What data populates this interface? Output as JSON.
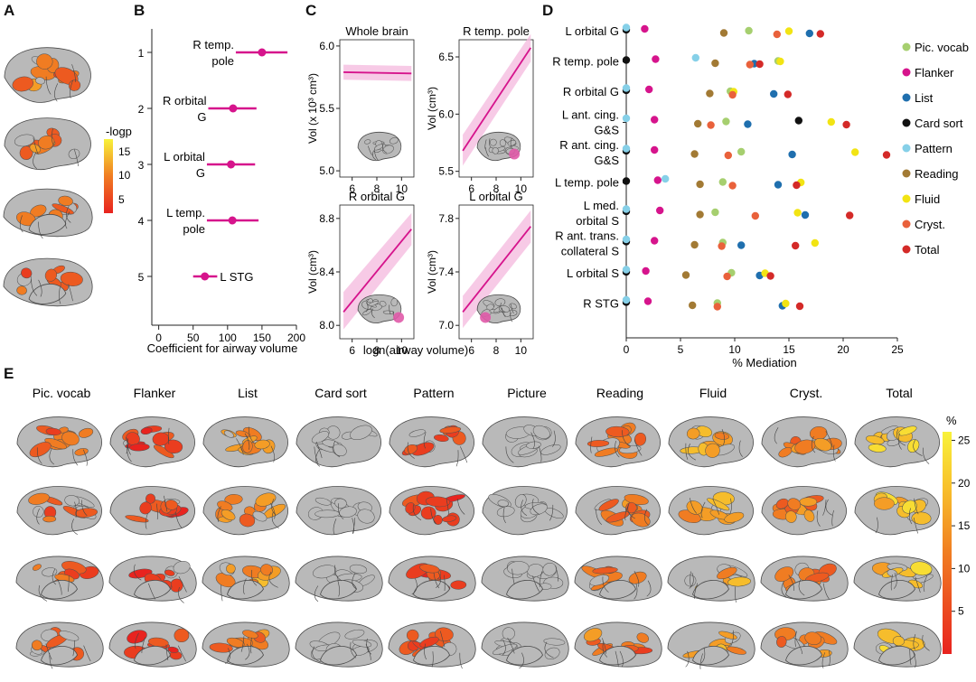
{
  "panel_labels": {
    "a": "A",
    "b": "B",
    "c": "C",
    "d": "D",
    "e": "E"
  },
  "colors": {
    "magenta": "#d6148c",
    "pink_band": "#f5bde0",
    "brain_gray": "#b9b9b9",
    "heat_low": "#e8231f",
    "heat_high": "#f8f23a"
  },
  "panel_a": {
    "colorbar": {
      "title": "-logp",
      "ticks": [
        "15",
        "10",
        "5"
      ],
      "range": [
        2,
        17
      ]
    }
  },
  "panel_b": {
    "chart_data": {
      "type": "scatter",
      "title": "",
      "xlabel": "Coefficient for airway volume",
      "xlim": [
        -10,
        200
      ],
      "xticks": [
        "0",
        "50",
        "100",
        "150",
        "200"
      ],
      "rank_ticks": [
        "1",
        "2",
        "3",
        "4",
        "5"
      ],
      "points": [
        {
          "rank": 1,
          "label": [
            "R temp.",
            "pole"
          ],
          "estimate": 150,
          "ci": [
            112,
            187
          ]
        },
        {
          "rank": 2,
          "label": [
            "R orbital",
            "G"
          ],
          "estimate": 108,
          "ci": [
            72,
            142
          ]
        },
        {
          "rank": 3,
          "label": [
            "L orbital",
            "G"
          ],
          "estimate": 105,
          "ci": [
            70,
            140
          ]
        },
        {
          "rank": 4,
          "label": [
            "L temp.",
            "pole"
          ],
          "estimate": 107,
          "ci": [
            70,
            145
          ]
        },
        {
          "rank": 5,
          "label": [
            "L STG"
          ],
          "estimate": 67,
          "ci": [
            50,
            85
          ]
        }
      ]
    }
  },
  "panel_c": {
    "chart_data": [
      {
        "type": "line",
        "title": "Whole brain",
        "ylabel": "Vol (x 10³ cm³)",
        "xlabel": "",
        "xlim": [
          5,
          11
        ],
        "ylim": [
          4.95,
          6.05
        ],
        "xticks": [
          "6",
          "8",
          "10"
        ],
        "yticks": [
          "5.0",
          "5.5",
          "6.0"
        ],
        "fit": [
          [
            5.3,
            5.79
          ],
          [
            10.8,
            5.78
          ]
        ],
        "band": [
          [
            5.3,
            5.73,
            5.85
          ],
          [
            10.8,
            5.72,
            5.84
          ]
        ],
        "highlight": null
      },
      {
        "type": "line",
        "title": "R temp. pole",
        "ylabel": "Vol (cm³)",
        "xlabel": "",
        "xlim": [
          5,
          11
        ],
        "ylim": [
          5.45,
          6.65
        ],
        "xticks": [
          "6",
          "8",
          "10"
        ],
        "yticks": [
          "5.5",
          "6.0",
          "6.5"
        ],
        "fit": [
          [
            5.3,
            5.68
          ],
          [
            10.8,
            6.58
          ]
        ],
        "band": [
          [
            5.3,
            5.55,
            5.82
          ],
          [
            10.8,
            6.46,
            6.7
          ]
        ],
        "highlight": "temporal pole"
      },
      {
        "type": "line",
        "title": "R orbital G",
        "ylabel": "Vol (cm³)",
        "xlabel": "",
        "xlim": [
          5,
          11
        ],
        "ylim": [
          7.9,
          8.9
        ],
        "xticks": [
          "6",
          "8",
          "10"
        ],
        "yticks": [
          "8.0",
          "8.4",
          "8.8"
        ],
        "fit": [
          [
            5.3,
            8.1
          ],
          [
            10.8,
            8.72
          ]
        ],
        "band": [
          [
            5.3,
            7.97,
            8.25
          ],
          [
            10.8,
            8.6,
            8.84
          ]
        ],
        "highlight": "orbital"
      },
      {
        "type": "line",
        "title": "L orbital G",
        "ylabel": "Vol (cm³)",
        "xlabel": "",
        "xlim": [
          5,
          11
        ],
        "ylim": [
          6.9,
          7.9
        ],
        "xticks": [
          "6",
          "8",
          "10"
        ],
        "yticks": [
          "7.0",
          "7.4",
          "7.8"
        ],
        "fit": [
          [
            5.3,
            7.1
          ],
          [
            10.8,
            7.74
          ]
        ],
        "band": [
          [
            5.3,
            6.98,
            7.22
          ],
          [
            10.8,
            7.62,
            7.86
          ]
        ],
        "highlight": "orbital"
      }
    ],
    "shared_xlabel": "logn(airway volume)"
  },
  "panel_d": {
    "chart_data": {
      "type": "scatter",
      "xlabel": "% Mediation",
      "xlim": [
        0,
        25
      ],
      "xticks": [
        "0",
        "5",
        "10",
        "15",
        "20",
        "25"
      ],
      "series": [
        {
          "name": "Pic. vocab",
          "color": "#a6cf6f"
        },
        {
          "name": "Flanker",
          "color": "#d6148c"
        },
        {
          "name": "List",
          "color": "#1f6fae"
        },
        {
          "name": "Card sort",
          "color": "#111111"
        },
        {
          "name": "Pattern",
          "color": "#86d0e8"
        },
        {
          "name": "Reading",
          "color": "#a27a34"
        },
        {
          "name": "Fluid",
          "color": "#f2e413"
        },
        {
          "name": "Cryst.",
          "color": "#e9613b"
        },
        {
          "name": "Total",
          "color": "#d42a28"
        }
      ],
      "rows": [
        {
          "label": [
            "L orbital G"
          ],
          "values": {
            "Pic. vocab": 11.3,
            "Flanker": 1.7,
            "List": 16.9,
            "Card sort": 0,
            "Pattern": 0,
            "Reading": 9.0,
            "Fluid": 15.0,
            "Cryst.": 13.9,
            "Total": 17.9
          }
        },
        {
          "label": [
            "R temp. pole"
          ],
          "values": {
            "Pic. vocab": 14.0,
            "Flanker": 2.7,
            "List": 11.8,
            "Card sort": 0,
            "Pattern": 6.4,
            "Reading": 8.2,
            "Fluid": 14.2,
            "Cryst.": 11.4,
            "Total": 12.3
          }
        },
        {
          "label": [
            "R orbital G"
          ],
          "values": {
            "Pic. vocab": 9.6,
            "Flanker": 2.1,
            "List": 13.6,
            "Card sort": 0,
            "Pattern": 0,
            "Reading": 7.7,
            "Fluid": 9.9,
            "Cryst.": 9.8,
            "Total": 14.9
          }
        },
        {
          "label": [
            "L ant. cing.",
            "G&S"
          ],
          "values": {
            "Pic. vocab": 9.2,
            "Flanker": 2.6,
            "List": 11.2,
            "Card sort": 15.9,
            "Pattern": 0,
            "Reading": 6.6,
            "Fluid": 18.9,
            "Cryst.": 7.8,
            "Total": 20.3
          }
        },
        {
          "label": [
            "R ant. cing.",
            "G&S"
          ],
          "values": {
            "Pic. vocab": 10.6,
            "Flanker": 2.6,
            "List": 15.3,
            "Card sort": 0,
            "Pattern": 0,
            "Reading": 6.3,
            "Fluid": 21.1,
            "Cryst.": 9.4,
            "Total": 24.0
          }
        },
        {
          "label": [
            "L temp. pole"
          ],
          "values": {
            "Pic. vocab": 8.9,
            "Flanker": 2.9,
            "List": 14.0,
            "Card sort": 0,
            "Pattern": 3.6,
            "Reading": 6.8,
            "Fluid": 16.1,
            "Cryst.": 9.8,
            "Total": 15.7
          }
        },
        {
          "label": [
            "L med.",
            "orbital S"
          ],
          "values": {
            "Pic. vocab": 8.2,
            "Flanker": 3.1,
            "List": 16.5,
            "Card sort": 0,
            "Pattern": 0,
            "Reading": 6.8,
            "Fluid": 15.8,
            "Cryst.": 11.9,
            "Total": 20.6
          }
        },
        {
          "label": [
            "R ant. trans.",
            "collateral S"
          ],
          "values": {
            "Pic. vocab": 8.9,
            "Flanker": 2.6,
            "List": 10.6,
            "Card sort": 0,
            "Pattern": 0,
            "Reading": 6.3,
            "Fluid": 17.4,
            "Cryst.": 8.8,
            "Total": 15.6
          }
        },
        {
          "label": [
            "L orbital S"
          ],
          "values": {
            "Pic. vocab": 9.7,
            "Flanker": 1.8,
            "List": 12.3,
            "Card sort": 0,
            "Pattern": 0,
            "Reading": 5.5,
            "Fluid": 12.8,
            "Cryst.": 9.3,
            "Total": 13.3
          }
        },
        {
          "label": [
            "R STG"
          ],
          "values": {
            "Pic. vocab": 8.4,
            "Flanker": 2.0,
            "List": 14.4,
            "Card sort": 0,
            "Pattern": 0,
            "Reading": 6.1,
            "Fluid": 14.7,
            "Cryst.": 8.4,
            "Total": 16.0
          }
        }
      ]
    }
  },
  "panel_e": {
    "columns": [
      "Pic. vocab",
      "Flanker",
      "List",
      "Card sort",
      "Pattern",
      "Picture",
      "Reading",
      "Fluid",
      "Cryst.",
      "Total"
    ],
    "intensity": [
      0.25,
      0.1,
      0.45,
      0,
      0.1,
      0,
      0.3,
      0.6,
      0.35,
      0.7
    ],
    "colorbar": {
      "title": "%",
      "ticks": [
        "25",
        "20",
        "15",
        "10",
        "5"
      ],
      "range": [
        0,
        26
      ]
    }
  }
}
